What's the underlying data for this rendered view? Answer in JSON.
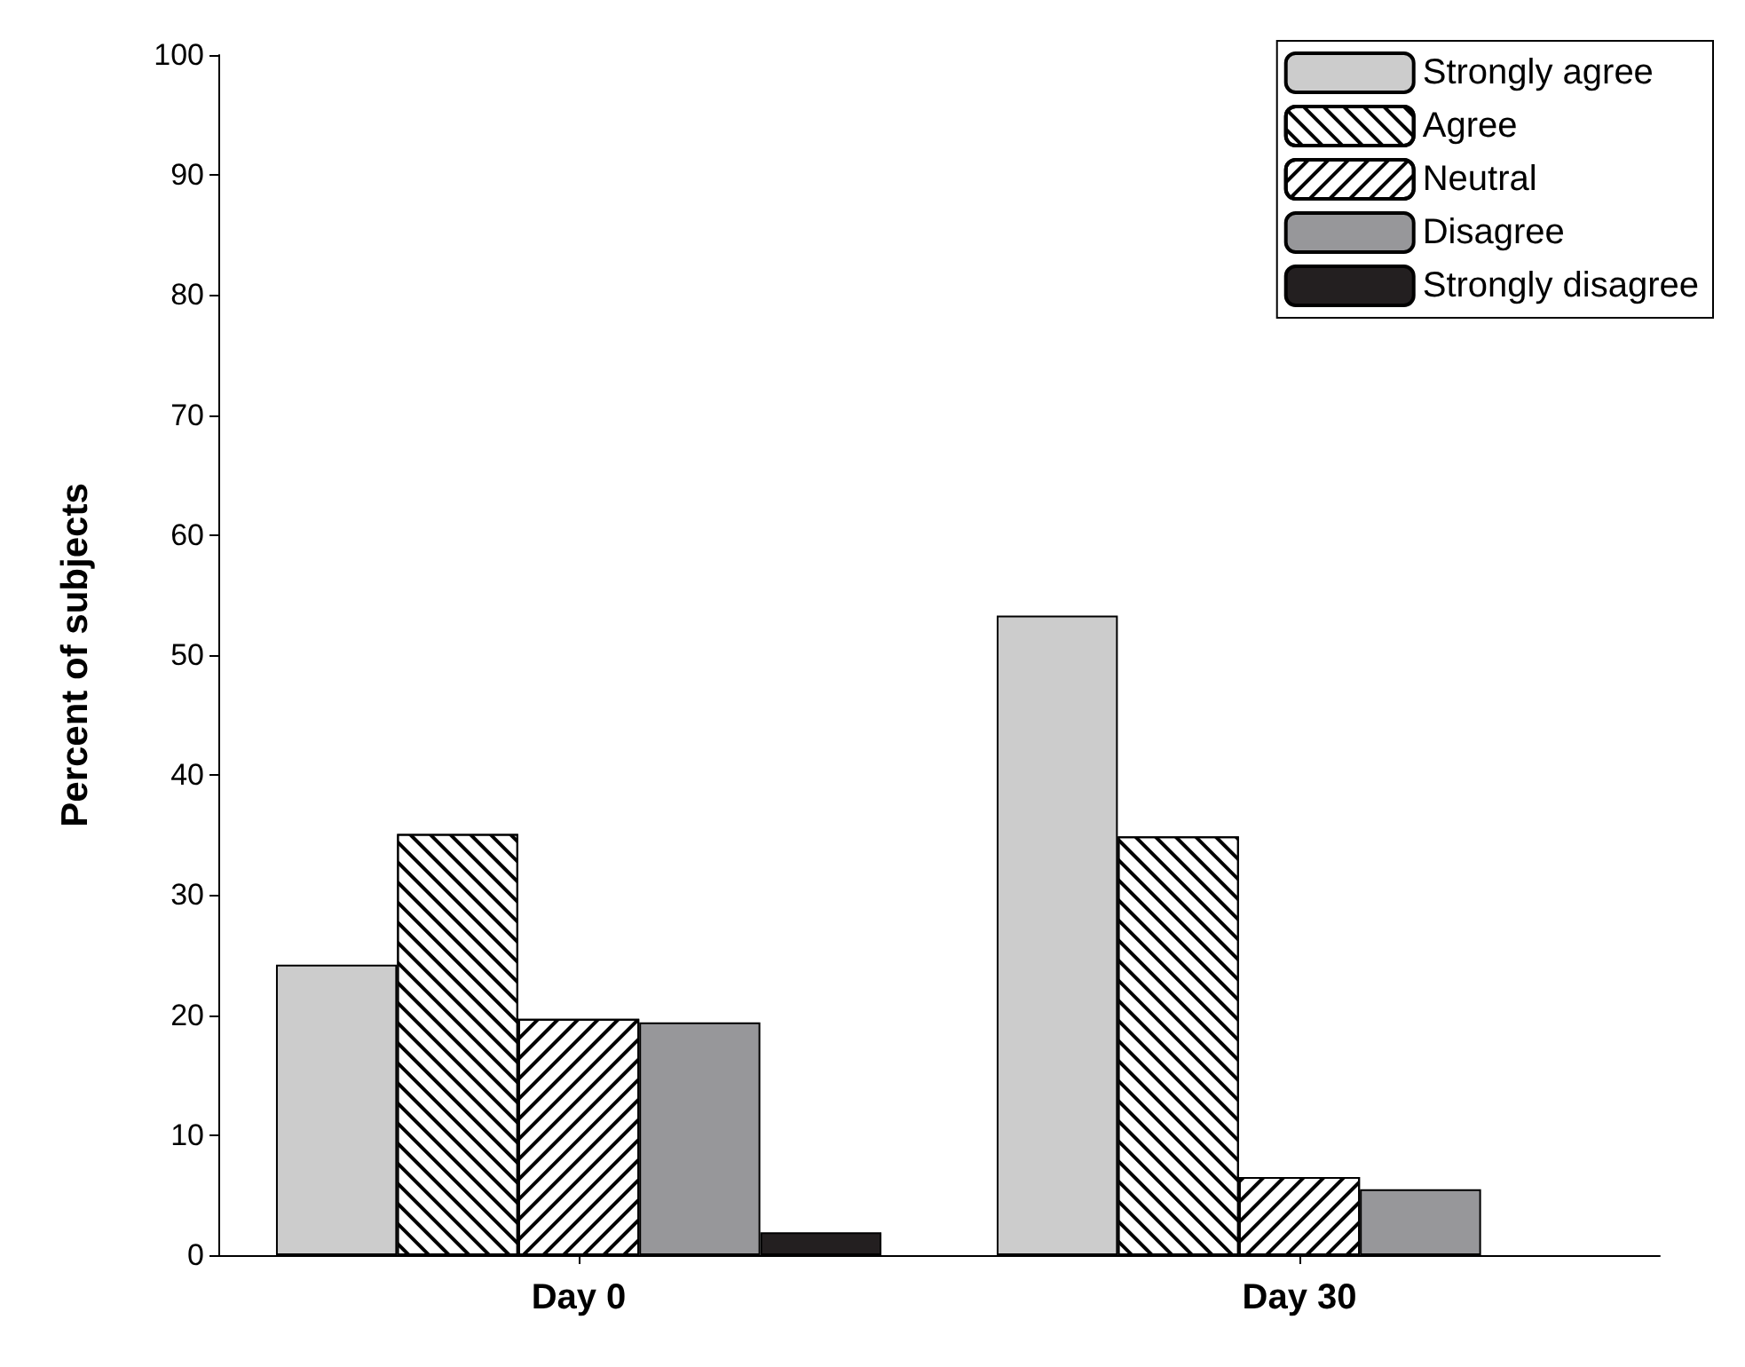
{
  "chart_data": {
    "type": "bar",
    "ylabel": "Percent of subjects",
    "categories": [
      "Day 0",
      "Day 30"
    ],
    "series": [
      {
        "name": "Strongly agree",
        "color": "#cccccc",
        "values": [
          24.2,
          53.3
        ]
      },
      {
        "name": "Agree",
        "color": "#ffffff",
        "values": [
          35.1,
          34.9
        ]
      },
      {
        "name": "Neutral",
        "color": "#ffffff",
        "values": [
          19.7,
          6.5
        ]
      },
      {
        "name": "Disagree",
        "color": "#97979a",
        "values": [
          19.4,
          5.5
        ]
      },
      {
        "name": "Strongly disagree",
        "color": "#231f20",
        "values": [
          1.9,
          null
        ]
      }
    ],
    "ylim": [
      0,
      100
    ],
    "yticks": [
      0,
      10,
      20,
      30,
      40,
      50,
      60,
      70,
      80,
      90,
      100
    ],
    "grid": false,
    "legend": "top right"
  }
}
